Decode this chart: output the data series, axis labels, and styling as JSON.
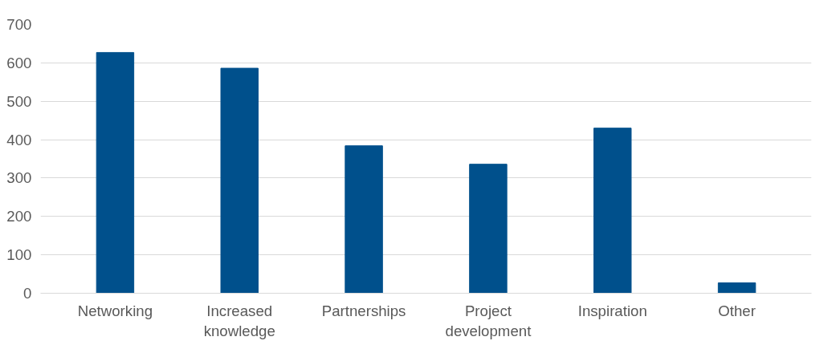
{
  "chart_data": {
    "type": "bar",
    "categories": [
      "Networking",
      "Increased\nknowledge",
      "Partnerships",
      "Project\ndevelopment",
      "Inspiration",
      "Other"
    ],
    "values": [
      627,
      586,
      384,
      336,
      430,
      27
    ],
    "color": "#00508c",
    "ylim": [
      0,
      700
    ],
    "yticks": [
      0,
      100,
      200,
      300,
      400,
      500,
      600,
      700
    ],
    "grid": "y"
  }
}
